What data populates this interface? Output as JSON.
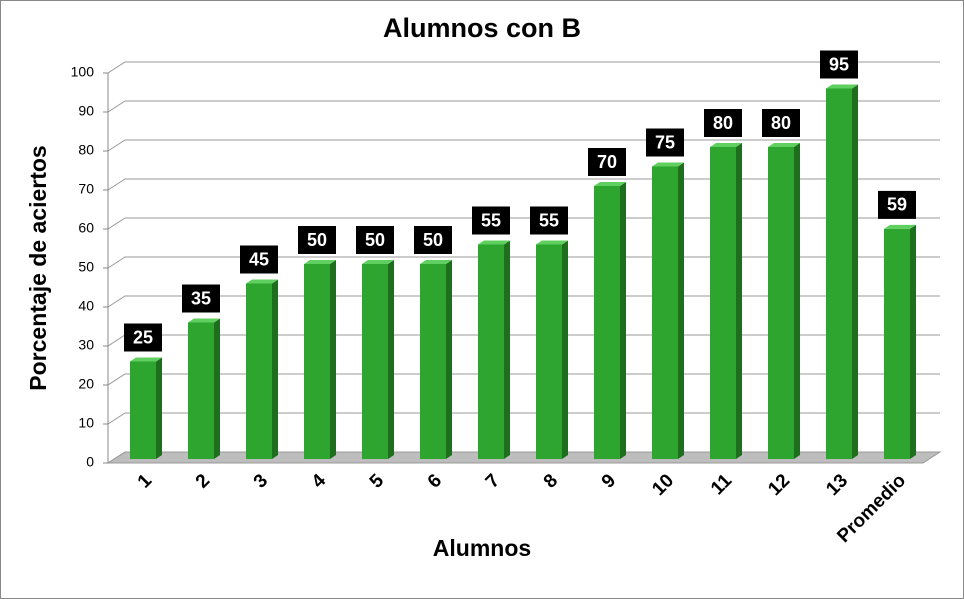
{
  "chart_data": {
    "type": "bar",
    "title": "Alumnos con B",
    "x_label": "Alumnos",
    "y_label": "Porcentaje de aciertos",
    "categories": [
      "1",
      "2",
      "3",
      "4",
      "5",
      "6",
      "7",
      "8",
      "9",
      "10",
      "11",
      "12",
      "13",
      "Promedio"
    ],
    "values": [
      25,
      35,
      45,
      50,
      50,
      50,
      55,
      55,
      70,
      75,
      80,
      80,
      95,
      59
    ],
    "color": "#2ea52e",
    "ylim": [
      0,
      100
    ],
    "yticks": [
      0,
      10,
      20,
      30,
      40,
      50,
      60,
      70,
      80,
      90,
      100
    ],
    "grid": true
  }
}
